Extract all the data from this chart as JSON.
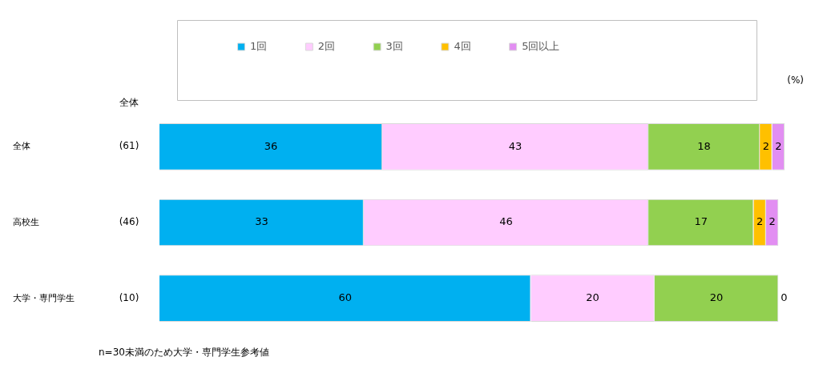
{
  "chart_data": {
    "type": "bar",
    "orientation": "horizontal",
    "stacked": true,
    "categories": [
      "全体",
      "高校生",
      "大学・専門学生"
    ],
    "series": [
      {
        "name": "1回",
        "color": "#00b0f0",
        "values": [
          36,
          33,
          60
        ],
        "value_labels": [
          "36",
          "33",
          "60"
        ]
      },
      {
        "name": "2回",
        "color": "#ffccff",
        "values": [
          43,
          46,
          20
        ],
        "value_labels": [
          "43",
          "46",
          "20"
        ]
      },
      {
        "name": "3回",
        "color": "#92d050",
        "values": [
          18,
          17,
          20
        ],
        "value_labels": [
          "18",
          "17",
          "20"
        ]
      },
      {
        "name": "4回",
        "color": "#ffc000",
        "values": [
          2,
          2,
          0
        ],
        "value_labels": [
          "2",
          "2",
          "0"
        ]
      },
      {
        "name": "5回以上",
        "color": "#e28ef2",
        "values": [
          2,
          2,
          0
        ],
        "value_labels": [
          "2",
          "2",
          null
        ]
      }
    ],
    "xlim": [
      0,
      101
    ],
    "tick_labels": "y",
    "grid": false,
    "legend": "top",
    "annotations": [
      "(%)",
      "全体",
      "n=30未満のため大学・専門学生参考値",
      "(61)",
      "(46)",
      "(10)"
    ]
  }
}
